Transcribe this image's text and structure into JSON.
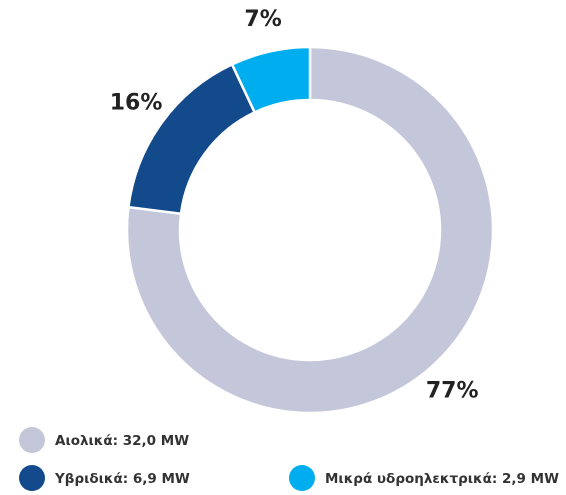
{
  "chart_data": {
    "type": "donut",
    "categories": [
      "Αιολικά: 32,0 MW",
      "Υβριδικά: 6,9 MW",
      "Μικρά υδροηλεκτρικά: 2,9 MW"
    ],
    "values": [
      77,
      16,
      7
    ],
    "value_labels": [
      "77%",
      "16%",
      "7%"
    ],
    "colors": [
      "#c3c7d9",
      "#124a8c",
      "#00aeef"
    ]
  }
}
